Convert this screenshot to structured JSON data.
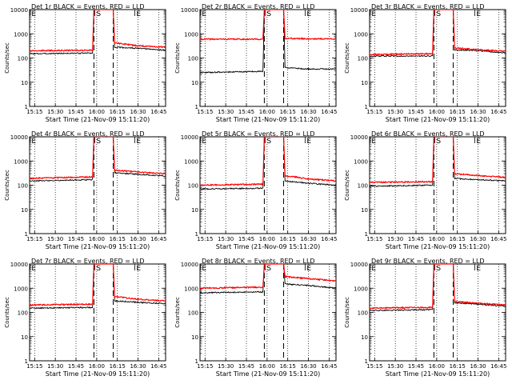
{
  "figure": {
    "start_time_label": "Start Time (21-Nov-09 15:11:20)",
    "ylabel": "Counts/sec",
    "event_markers": [
      "E",
      "S",
      "E"
    ],
    "colors": {
      "events": "#000000",
      "lld": "#ff0000",
      "background": "#ffffff"
    }
  },
  "chart_data": [
    {
      "type": "line",
      "title": "Det 1r BLACK = Events, RED = LLD",
      "xlabel": "Start Time (21-Nov-09 15:11:20)",
      "ylabel": "Counts/sec",
      "x_ticks": [
        "15:15",
        "15:30",
        "15:45",
        "16:00",
        "16:15",
        "16:30",
        "16:45"
      ],
      "y_ticks": [
        "1",
        "10",
        "100",
        "1000",
        "10000"
      ],
      "yscale": "log",
      "ylim": [
        1,
        10000
      ],
      "x_range": [
        "15:11:20",
        "16:50"
      ],
      "vertical_dashed_lines": [
        "15:58",
        "16:12"
      ],
      "markers": [
        {
          "label": "E",
          "x": "15:11"
        },
        {
          "label": "S",
          "x": "15:58"
        },
        {
          "label": "E",
          "x": "16:27"
        }
      ],
      "series": [
        {
          "name": "Events",
          "x": [
            "15:11",
            "15:57",
            "15:58",
            "16:12",
            "16:13",
            "16:30",
            "16:50"
          ],
          "values": [
            150,
            160,
            10000,
            10000,
            280,
            250,
            210
          ]
        },
        {
          "name": "LLD",
          "x": [
            "15:11",
            "15:57",
            "15:58",
            "16:12",
            "16:13",
            "16:30",
            "16:50"
          ],
          "values": [
            200,
            210,
            10000,
            10000,
            420,
            320,
            280
          ]
        }
      ]
    },
    {
      "type": "line",
      "title": "Det 2r BLACK = Events, RED = LLD",
      "xlabel": "Start Time (21-Nov-09 15:11:20)",
      "ylabel": "Counts/sec",
      "x_ticks": [
        "15:15",
        "15:30",
        "15:45",
        "16:00",
        "16:15",
        "16:30",
        "16:45"
      ],
      "y_ticks": [
        "1",
        "10",
        "100",
        "1000",
        "10000"
      ],
      "yscale": "log",
      "ylim": [
        1,
        10000
      ],
      "x_range": [
        "15:11:20",
        "16:50"
      ],
      "vertical_dashed_lines": [
        "15:58",
        "16:12"
      ],
      "markers": [
        {
          "label": "E",
          "x": "15:11"
        },
        {
          "label": "S",
          "x": "15:58"
        },
        {
          "label": "E",
          "x": "16:27"
        }
      ],
      "series": [
        {
          "name": "Events",
          "x": [
            "15:11",
            "15:57",
            "15:58",
            "16:12",
            "16:13",
            "16:30",
            "16:50"
          ],
          "values": [
            25,
            28,
            10000,
            10000,
            40,
            35,
            35
          ]
        },
        {
          "name": "LLD",
          "x": [
            "15:11",
            "15:57",
            "15:58",
            "16:12",
            "16:13",
            "16:30",
            "16:50"
          ],
          "values": [
            600,
            600,
            10000,
            10000,
            650,
            620,
            620
          ]
        }
      ]
    },
    {
      "type": "line",
      "title": "Det 3r BLACK = Events, RED = LLD",
      "xlabel": "Start Time (21-Nov-09 15:11:20)",
      "ylabel": "Counts/sec",
      "x_ticks": [
        "15:15",
        "15:30",
        "15:45",
        "16:00",
        "16:15",
        "16:30",
        "16:45"
      ],
      "y_ticks": [
        "1",
        "10",
        "100",
        "1000",
        "10000"
      ],
      "yscale": "log",
      "ylim": [
        1,
        10000
      ],
      "x_range": [
        "15:11:20",
        "16:50"
      ],
      "vertical_dashed_lines": [
        "15:58",
        "16:12"
      ],
      "markers": [
        {
          "label": "E",
          "x": "15:11"
        },
        {
          "label": "S",
          "x": "15:58"
        },
        {
          "label": "E",
          "x": "16:27"
        }
      ],
      "series": [
        {
          "name": "Events",
          "x": [
            "15:11",
            "15:57",
            "15:58",
            "16:12",
            "16:13",
            "16:30",
            "16:50"
          ],
          "values": [
            120,
            120,
            10000,
            10000,
            220,
            200,
            160
          ]
        },
        {
          "name": "LLD",
          "x": [
            "15:11",
            "15:57",
            "15:58",
            "16:12",
            "16:13",
            "16:30",
            "16:50"
          ],
          "values": [
            140,
            150,
            10000,
            10000,
            260,
            220,
            190
          ]
        }
      ]
    },
    {
      "type": "line",
      "title": "Det 4r BLACK = Events, RED = LLD",
      "xlabel": "Start Time (21-Nov-09 15:11:20)",
      "ylabel": "Counts/sec",
      "x_ticks": [
        "15:15",
        "15:30",
        "15:45",
        "16:00",
        "16:15",
        "16:30",
        "16:45"
      ],
      "y_ticks": [
        "1",
        "10",
        "100",
        "1000",
        "10000"
      ],
      "yscale": "log",
      "ylim": [
        1,
        10000
      ],
      "x_range": [
        "15:11:20",
        "16:50"
      ],
      "vertical_dashed_lines": [
        "15:58",
        "16:12"
      ],
      "markers": [
        {
          "label": "E",
          "x": "15:11"
        },
        {
          "label": "S",
          "x": "15:58"
        },
        {
          "label": "E",
          "x": "16:27"
        }
      ],
      "series": [
        {
          "name": "Events",
          "x": [
            "15:11",
            "15:57",
            "15:58",
            "16:12",
            "16:13",
            "16:30",
            "16:50"
          ],
          "values": [
            150,
            170,
            10000,
            10000,
            330,
            280,
            240
          ]
        },
        {
          "name": "LLD",
          "x": [
            "15:11",
            "15:57",
            "15:58",
            "16:12",
            "16:13",
            "16:30",
            "16:50"
          ],
          "values": [
            190,
            220,
            10000,
            10000,
            420,
            350,
            300
          ]
        }
      ]
    },
    {
      "type": "line",
      "title": "Det 5r BLACK = Events, RED = LLD",
      "xlabel": "Start Time (21-Nov-09 15:11:20)",
      "ylabel": "Counts/sec",
      "x_ticks": [
        "15:15",
        "15:30",
        "15:45",
        "16:00",
        "16:15",
        "16:30",
        "16:45"
      ],
      "y_ticks": [
        "1",
        "10",
        "100",
        "1000",
        "10000"
      ],
      "yscale": "log",
      "ylim": [
        1,
        10000
      ],
      "x_range": [
        "15:11:20",
        "16:50"
      ],
      "vertical_dashed_lines": [
        "15:58",
        "16:12"
      ],
      "markers": [
        {
          "label": "E",
          "x": "15:11"
        },
        {
          "label": "S",
          "x": "15:58"
        },
        {
          "label": "E",
          "x": "16:27"
        }
      ],
      "series": [
        {
          "name": "Events",
          "x": [
            "15:11",
            "15:57",
            "15:58",
            "16:12",
            "16:13",
            "16:30",
            "16:50"
          ],
          "values": [
            70,
            75,
            10000,
            10000,
            150,
            120,
            100
          ]
        },
        {
          "name": "LLD",
          "x": [
            "15:11",
            "15:57",
            "15:58",
            "16:12",
            "16:13",
            "16:30",
            "16:50"
          ],
          "values": [
            100,
            110,
            10000,
            10000,
            250,
            180,
            150
          ]
        }
      ]
    },
    {
      "type": "line",
      "title": "Det 6r BLACK = Events, RED = LLD",
      "xlabel": "Start Time (21-Nov-09 15:11:20)",
      "ylabel": "Counts/sec",
      "x_ticks": [
        "15:15",
        "15:30",
        "15:45",
        "16:00",
        "16:15",
        "16:30",
        "16:45"
      ],
      "y_ticks": [
        "1",
        "10",
        "100",
        "1000",
        "10000"
      ],
      "yscale": "log",
      "ylim": [
        1,
        10000
      ],
      "x_range": [
        "15:11:20",
        "16:50"
      ],
      "vertical_dashed_lines": [
        "15:58",
        "16:12"
      ],
      "markers": [
        {
          "label": "E",
          "x": "15:11"
        },
        {
          "label": "S",
          "x": "15:58"
        },
        {
          "label": "E",
          "x": "16:27"
        }
      ],
      "series": [
        {
          "name": "Events",
          "x": [
            "15:11",
            "15:57",
            "15:58",
            "16:12",
            "16:13",
            "16:30",
            "16:50"
          ],
          "values": [
            90,
            100,
            10000,
            10000,
            190,
            170,
            150
          ]
        },
        {
          "name": "LLD",
          "x": [
            "15:11",
            "15:57",
            "15:58",
            "16:12",
            "16:13",
            "16:30",
            "16:50"
          ],
          "values": [
            130,
            140,
            10000,
            10000,
            300,
            250,
            210
          ]
        }
      ]
    },
    {
      "type": "line",
      "title": "Det 7r BLACK = Events, RED = LLD",
      "xlabel": "Start Time (21-Nov-09 15:11:20)",
      "ylabel": "Counts/sec",
      "x_ticks": [
        "15:15",
        "15:30",
        "15:45",
        "16:00",
        "16:15",
        "16:30",
        "16:45"
      ],
      "y_ticks": [
        "1",
        "10",
        "100",
        "1000",
        "10000"
      ],
      "yscale": "log",
      "ylim": [
        1,
        10000
      ],
      "x_range": [
        "15:11:20",
        "16:50"
      ],
      "vertical_dashed_lines": [
        "15:58",
        "16:12"
      ],
      "markers": [
        {
          "label": "E",
          "x": "15:11"
        },
        {
          "label": "S",
          "x": "15:58"
        },
        {
          "label": "E",
          "x": "16:27"
        }
      ],
      "series": [
        {
          "name": "Events",
          "x": [
            "15:11",
            "15:57",
            "15:58",
            "16:12",
            "16:13",
            "16:30",
            "16:50"
          ],
          "values": [
            150,
            160,
            10000,
            10000,
            300,
            260,
            230
          ]
        },
        {
          "name": "LLD",
          "x": [
            "15:11",
            "15:57",
            "15:58",
            "16:12",
            "16:13",
            "16:30",
            "16:50"
          ],
          "values": [
            200,
            220,
            10000,
            10000,
            450,
            350,
            300
          ]
        }
      ]
    },
    {
      "type": "line",
      "title": "Det 8r BLACK = Events, RED = LLD",
      "xlabel": "Start Time (21-Nov-09 15:11:20)",
      "ylabel": "Counts/sec",
      "x_ticks": [
        "15:15",
        "15:30",
        "15:45",
        "16:00",
        "16:15",
        "16:30",
        "16:45"
      ],
      "y_ticks": [
        "1",
        "10",
        "100",
        "1000",
        "10000"
      ],
      "yscale": "log",
      "ylim": [
        1,
        10000
      ],
      "x_range": [
        "15:11:20",
        "16:50"
      ],
      "vertical_dashed_lines": [
        "15:58",
        "16:12"
      ],
      "markers": [
        {
          "label": "E",
          "x": "15:11"
        },
        {
          "label": "S",
          "x": "15:58"
        },
        {
          "label": "E",
          "x": "16:27"
        }
      ],
      "series": [
        {
          "name": "Events",
          "x": [
            "15:11",
            "15:57",
            "15:58",
            "16:12",
            "16:13",
            "16:30",
            "16:50"
          ],
          "values": [
            650,
            700,
            10000,
            10000,
            1500,
            1300,
            1000
          ]
        },
        {
          "name": "LLD",
          "x": [
            "15:11",
            "15:57",
            "15:58",
            "16:12",
            "16:13",
            "16:30",
            "16:50"
          ],
          "values": [
            1000,
            1100,
            10000,
            10000,
            3000,
            2500,
            2000
          ]
        }
      ]
    },
    {
      "type": "line",
      "title": "Det 9r BLACK = Events, RED = LLD",
      "xlabel": "Start Time (21-Nov-09 15:11:20)",
      "ylabel": "Counts/sec",
      "x_ticks": [
        "15:15",
        "15:30",
        "15:45",
        "16:00",
        "16:15",
        "16:30",
        "16:45"
      ],
      "y_ticks": [
        "1",
        "10",
        "100",
        "1000",
        "10000"
      ],
      "yscale": "log",
      "ylim": [
        1,
        10000
      ],
      "x_range": [
        "15:11:20",
        "16:50"
      ],
      "vertical_dashed_lines": [
        "15:58",
        "16:12"
      ],
      "markers": [
        {
          "label": "E",
          "x": "15:11"
        },
        {
          "label": "S",
          "x": "15:58"
        },
        {
          "label": "E",
          "x": "16:27"
        }
      ],
      "series": [
        {
          "name": "Events",
          "x": [
            "15:11",
            "15:57",
            "15:58",
            "16:12",
            "16:13",
            "16:30",
            "16:50"
          ],
          "values": [
            120,
            130,
            10000,
            10000,
            250,
            220,
            180
          ]
        },
        {
          "name": "LLD",
          "x": [
            "15:11",
            "15:57",
            "15:58",
            "16:12",
            "16:13",
            "16:30",
            "16:50"
          ],
          "values": [
            150,
            160,
            10000,
            10000,
            280,
            240,
            200
          ]
        }
      ]
    }
  ]
}
